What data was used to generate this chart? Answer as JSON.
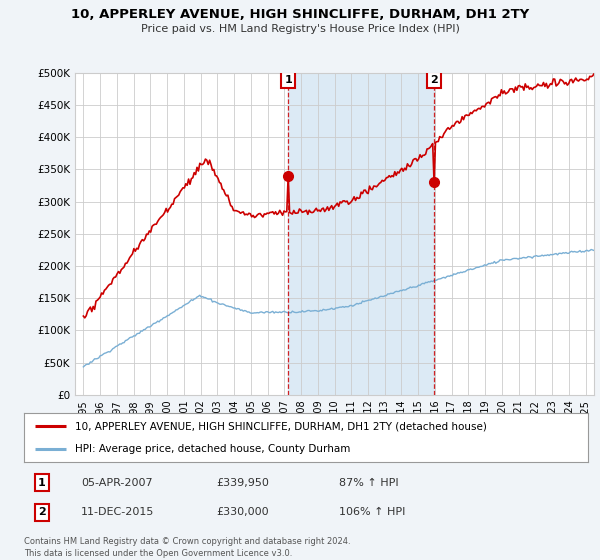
{
  "title1": "10, APPERLEY AVENUE, HIGH SHINCLIFFE, DURHAM, DH1 2TY",
  "title2": "Price paid vs. HM Land Registry's House Price Index (HPI)",
  "legend_line1": "10, APPERLEY AVENUE, HIGH SHINCLIFFE, DURHAM, DH1 2TY (detached house)",
  "legend_line2": "HPI: Average price, detached house, County Durham",
  "annotation1_label": "1",
  "annotation1_date": "05-APR-2007",
  "annotation1_price": "£339,950",
  "annotation1_hpi": "87% ↑ HPI",
  "annotation2_label": "2",
  "annotation2_date": "11-DEC-2015",
  "annotation2_price": "£330,000",
  "annotation2_hpi": "106% ↑ HPI",
  "footer": "Contains HM Land Registry data © Crown copyright and database right 2024.\nThis data is licensed under the Open Government Licence v3.0.",
  "sale1_year": 2007.27,
  "sale1_price": 339950,
  "sale2_year": 2015.95,
  "sale2_price": 330000,
  "line1_color": "#cc0000",
  "line2_color": "#7aafd4",
  "shade_color": "#dceaf5",
  "dashed_color": "#cc0000",
  "background_color": "#f0f4f8",
  "plot_bg_color": "#ffffff",
  "grid_color": "#cccccc",
  "ylim_max": 500000,
  "xlim_start": 1994.5,
  "xlim_end": 2025.5
}
